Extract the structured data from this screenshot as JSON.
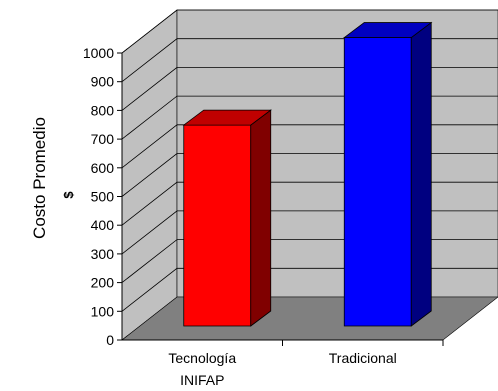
{
  "chart_data": {
    "type": "bar",
    "categories": [
      "Tecnología INIFAP",
      "Tradicional"
    ],
    "category_lines": [
      [
        "Tecnología",
        "INIFAP"
      ],
      [
        "Tradicional"
      ]
    ],
    "values": [
      700,
      1005
    ],
    "ylabel": "Costo Promedio",
    "yunit": "$",
    "ylim": [
      0,
      1000
    ],
    "yticks": [
      "0",
      "100",
      "200",
      "300",
      "400",
      "500",
      "600",
      "700",
      "800",
      "900",
      "1000"
    ],
    "grid": true,
    "legend": "none",
    "three_d": true,
    "colors": {
      "bar_front": [
        "#ff0000",
        "#0000ff"
      ],
      "bar_side": [
        "#800000",
        "#000080"
      ],
      "bar_top": [
        "#c00000",
        "#0000c0"
      ],
      "wall": "#c0c0c0",
      "floor": "#808080"
    }
  }
}
